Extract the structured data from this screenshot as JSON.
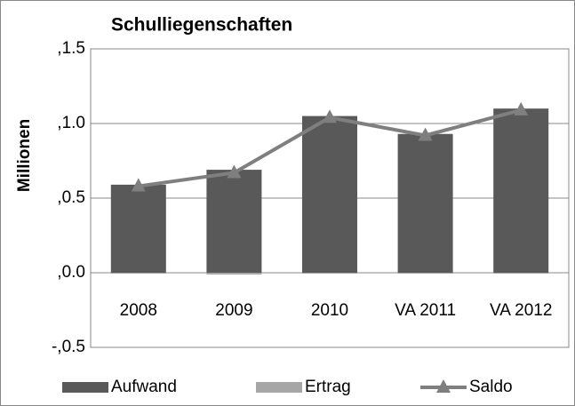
{
  "chart_data": {
    "type": "bar",
    "title": "Schulliegenschaften",
    "y_label": "Millionen",
    "categories": [
      "2008",
      "2009",
      "2010",
      "VA 2011",
      "VA 2012"
    ],
    "series": [
      {
        "name": "Aufwand",
        "type": "bar",
        "color": "#595959",
        "values": [
          0.59,
          0.69,
          1.05,
          0.93,
          1.1
        ]
      },
      {
        "name": "Ertrag",
        "type": "bar",
        "color": "#a6a6a6",
        "values": [
          -0.004,
          -0.012,
          -0.004,
          -0.003,
          -0.003
        ]
      },
      {
        "name": "Saldo",
        "type": "line",
        "color": "#7f7f7f",
        "values": [
          0.58,
          0.67,
          1.04,
          0.92,
          1.09
        ]
      }
    ],
    "ylim": [
      -0.5,
      1.5
    ],
    "yticks": [
      {
        "value": -0.5,
        "label": "-,0.5"
      },
      {
        "value": 0.0,
        "label": ",0.0"
      },
      {
        "value": 0.5,
        "label": ",0.5"
      },
      {
        "value": 1.0,
        "label": ",1.0"
      },
      {
        "value": 1.5,
        "label": ",1.5"
      }
    ],
    "grid": true,
    "legend": "bottom"
  }
}
